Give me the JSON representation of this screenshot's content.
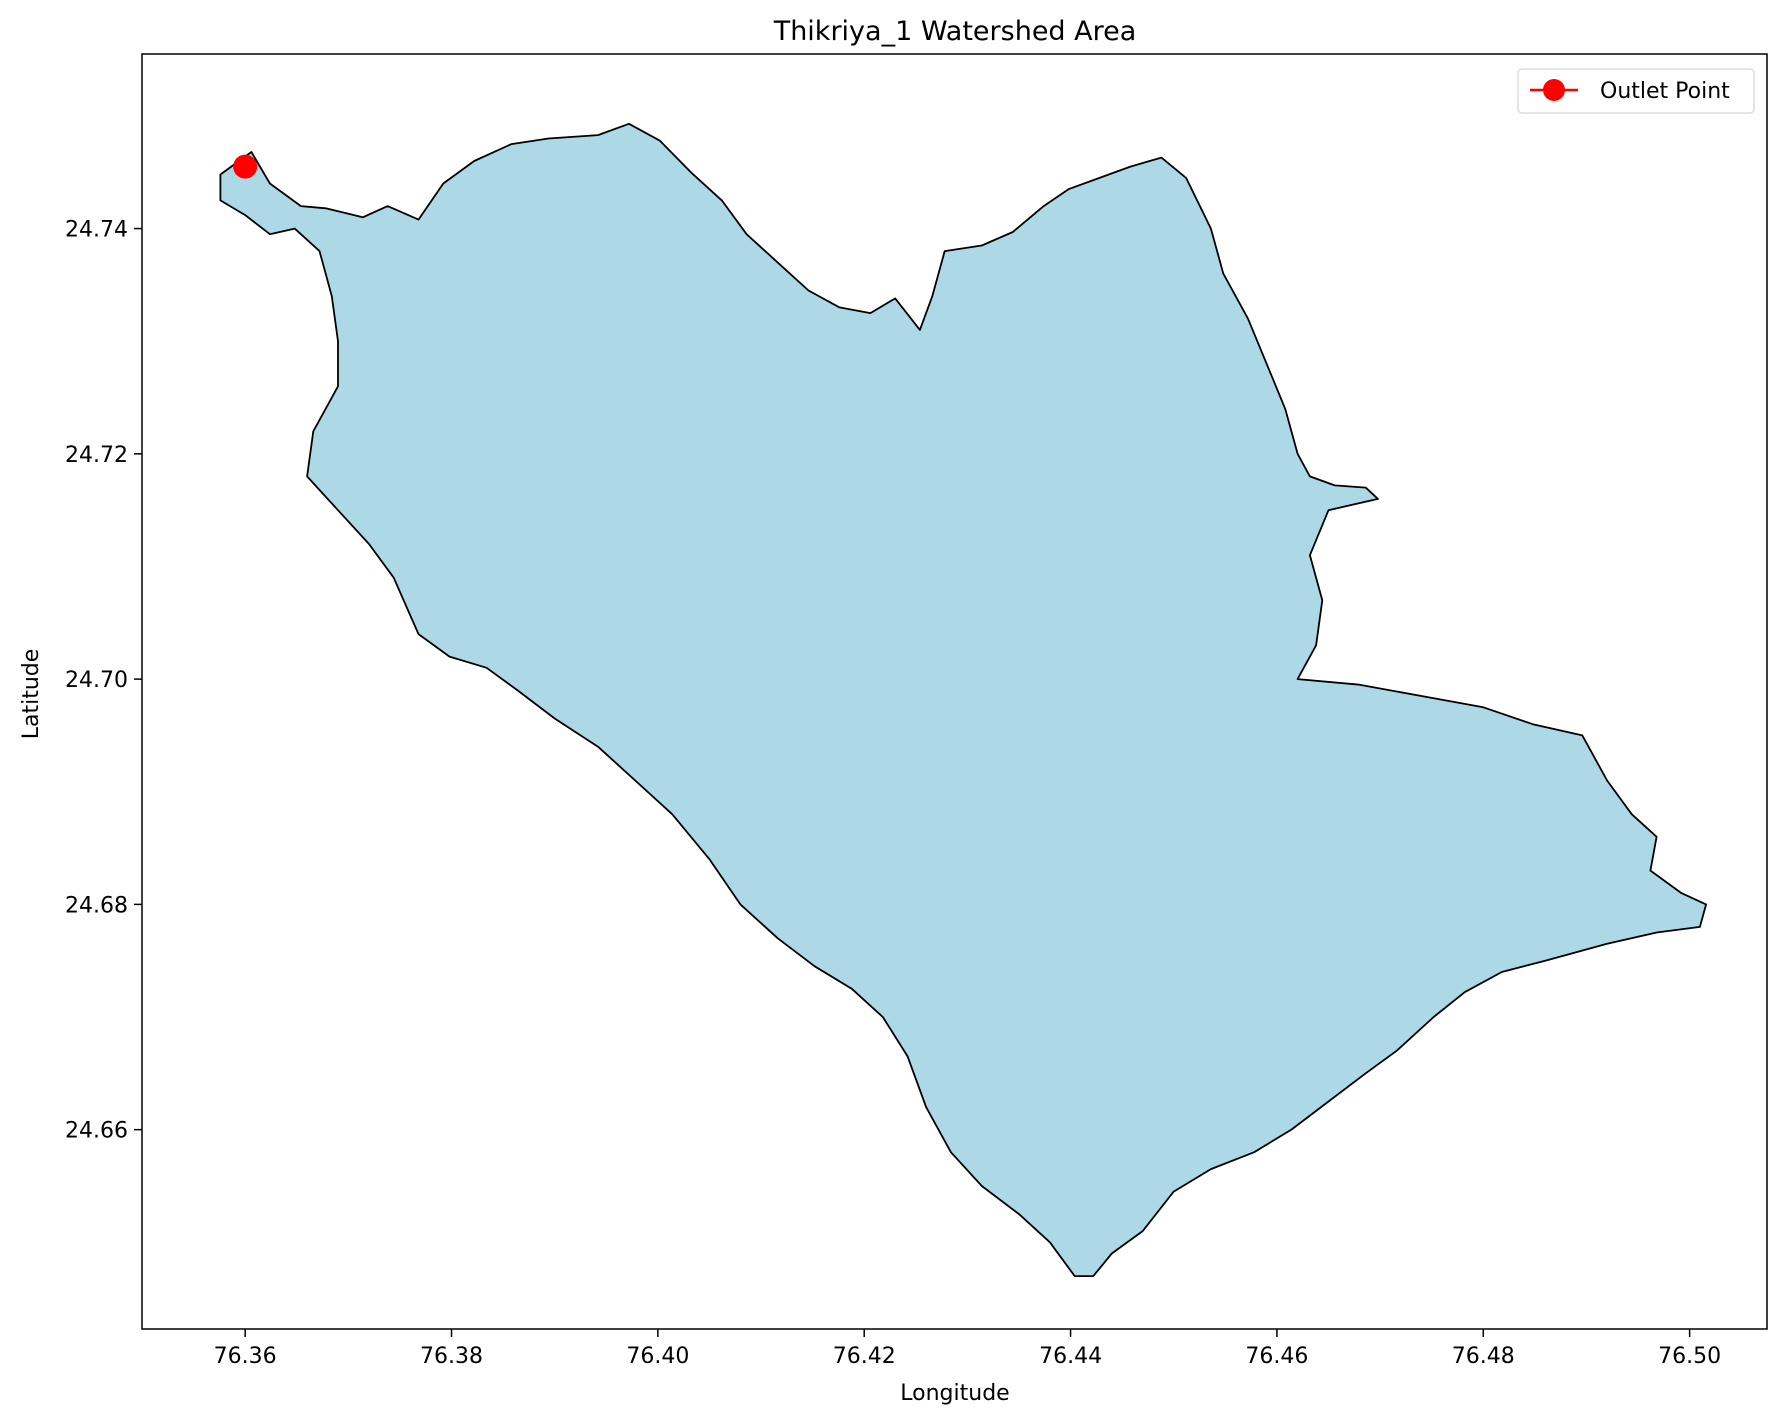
{
  "chart_data": {
    "type": "map",
    "title": "Thikriya_1 Watershed Area",
    "xlabel": "Longitude",
    "ylabel": "Latitude",
    "xlim": [
      76.35,
      76.5075
    ],
    "ylim": [
      24.6423,
      24.7555
    ],
    "x_ticks": [
      "76.36",
      "76.38",
      "76.40",
      "76.42",
      "76.44",
      "76.46",
      "76.48",
      "76.50"
    ],
    "x_tick_values": [
      76.36,
      76.38,
      76.4,
      76.42,
      76.44,
      76.46,
      76.48,
      76.5
    ],
    "y_ticks": [
      "24.66",
      "24.68",
      "24.70",
      "24.72",
      "24.74"
    ],
    "y_tick_values": [
      24.66,
      24.68,
      24.7,
      24.72,
      24.74
    ],
    "grid": false,
    "legend_position": "top-right",
    "watershed": {
      "fill_color": "#add8e6",
      "edge_color": "#000000",
      "boundary": [
        [
          76.3576,
          24.7448
        ],
        [
          76.3606,
          24.7468
        ],
        [
          76.3624,
          24.744
        ],
        [
          76.3654,
          24.742
        ],
        [
          76.3678,
          24.7418
        ],
        [
          76.3714,
          24.741
        ],
        [
          76.3738,
          24.742
        ],
        [
          76.3768,
          24.7408
        ],
        [
          76.3792,
          24.744
        ],
        [
          76.3822,
          24.746
        ],
        [
          76.3858,
          24.7475
        ],
        [
          76.3894,
          24.748
        ],
        [
          76.3942,
          24.7483
        ],
        [
          76.3972,
          24.7493
        ],
        [
          76.4002,
          24.7478
        ],
        [
          76.4032,
          24.745
        ],
        [
          76.4062,
          24.7425
        ],
        [
          76.4086,
          24.7395
        ],
        [
          76.4116,
          24.737
        ],
        [
          76.4146,
          24.7345
        ],
        [
          76.4176,
          24.733
        ],
        [
          76.4206,
          24.7325
        ],
        [
          76.423,
          24.7338
        ],
        [
          76.4254,
          24.731
        ],
        [
          76.4266,
          24.734
        ],
        [
          76.4278,
          24.738
        ],
        [
          76.4314,
          24.7385
        ],
        [
          76.4344,
          24.7397
        ],
        [
          76.4374,
          24.742
        ],
        [
          76.4398,
          24.7435
        ],
        [
          76.4428,
          24.7445
        ],
        [
          76.4458,
          24.7455
        ],
        [
          76.4488,
          24.7463
        ],
        [
          76.4512,
          24.7445
        ],
        [
          76.4536,
          24.74
        ],
        [
          76.4548,
          24.736
        ],
        [
          76.4572,
          24.732
        ],
        [
          76.459,
          24.728
        ],
        [
          76.4608,
          24.724
        ],
        [
          76.462,
          24.72
        ],
        [
          76.4632,
          24.718
        ],
        [
          76.4656,
          24.7172
        ],
        [
          76.4686,
          24.717
        ],
        [
          76.4698,
          24.716
        ],
        [
          76.465,
          24.715
        ],
        [
          76.4632,
          24.711
        ],
        [
          76.4644,
          24.707
        ],
        [
          76.4638,
          24.703
        ],
        [
          76.462,
          24.7
        ],
        [
          76.468,
          24.6995
        ],
        [
          76.474,
          24.6985
        ],
        [
          76.48,
          24.6975
        ],
        [
          76.4848,
          24.696
        ],
        [
          76.4896,
          24.695
        ],
        [
          76.492,
          24.691
        ],
        [
          76.4944,
          24.688
        ],
        [
          76.4968,
          24.686
        ],
        [
          76.4962,
          24.683
        ],
        [
          76.4992,
          24.681
        ],
        [
          76.5016,
          24.68
        ],
        [
          76.501,
          24.678
        ],
        [
          76.4968,
          24.6775
        ],
        [
          76.492,
          24.6765
        ],
        [
          76.486,
          24.675
        ],
        [
          76.4818,
          24.674
        ],
        [
          76.4782,
          24.6722
        ],
        [
          76.4752,
          24.67
        ],
        [
          76.4716,
          24.667
        ],
        [
          76.4686,
          24.665
        ],
        [
          76.465,
          24.6625
        ],
        [
          76.4614,
          24.66
        ],
        [
          76.4578,
          24.658
        ],
        [
          76.4536,
          24.6565
        ],
        [
          76.45,
          24.6545
        ],
        [
          76.447,
          24.651
        ],
        [
          76.444,
          24.649
        ],
        [
          76.4422,
          24.647
        ],
        [
          76.4404,
          24.647
        ],
        [
          76.438,
          24.65
        ],
        [
          76.435,
          24.6525
        ],
        [
          76.4314,
          24.655
        ],
        [
          76.4284,
          24.658
        ],
        [
          76.426,
          24.662
        ],
        [
          76.4242,
          24.6665
        ],
        [
          76.4218,
          24.67
        ],
        [
          76.4188,
          24.6725
        ],
        [
          76.4152,
          24.6745
        ],
        [
          76.4116,
          24.677
        ],
        [
          76.408,
          24.68
        ],
        [
          76.405,
          24.684
        ],
        [
          76.4014,
          24.688
        ],
        [
          76.3978,
          24.691
        ],
        [
          76.3942,
          24.694
        ],
        [
          76.39,
          24.6965
        ],
        [
          76.3864,
          24.699
        ],
        [
          76.3834,
          24.701
        ],
        [
          76.3798,
          24.702
        ],
        [
          76.3768,
          24.704
        ],
        [
          76.3744,
          24.709
        ],
        [
          76.372,
          24.712
        ],
        [
          76.369,
          24.715
        ],
        [
          76.366,
          24.718
        ],
        [
          76.3666,
          24.722
        ],
        [
          76.369,
          24.726
        ],
        [
          76.369,
          24.73
        ],
        [
          76.3684,
          24.734
        ],
        [
          76.3672,
          24.738
        ],
        [
          76.3648,
          24.74
        ],
        [
          76.3624,
          24.7395
        ],
        [
          76.36,
          24.7412
        ],
        [
          76.3576,
          24.7425
        ]
      ]
    },
    "series": [
      {
        "name": "Outlet Point",
        "color": "#ff0000",
        "points": [
          [
            76.36,
            24.7455
          ]
        ]
      }
    ]
  }
}
